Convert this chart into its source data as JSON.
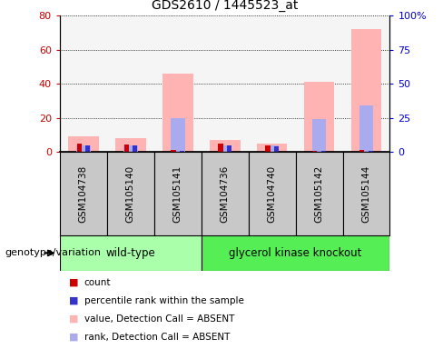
{
  "title": "GDS2610 / 1445523_at",
  "samples": [
    "GSM104738",
    "GSM105140",
    "GSM105141",
    "GSM104736",
    "GSM104740",
    "GSM105142",
    "GSM105144"
  ],
  "pink_bars": [
    9.0,
    8.0,
    46.0,
    7.0,
    5.0,
    41.0,
    72.0
  ],
  "red_bars": [
    5.0,
    4.5,
    1.0,
    5.0,
    3.5,
    0.5,
    1.0
  ],
  "blue_bars": [
    4.0,
    4.0,
    20.0,
    4.0,
    3.5,
    19.5,
    27.0
  ],
  "lightblue_bars": [
    3.5,
    3.5,
    0.8,
    3.5,
    3.0,
    0.4,
    0.8
  ],
  "left_ylim": [
    0,
    80
  ],
  "left_yticks": [
    0,
    20,
    40,
    60,
    80
  ],
  "right_yticks": [
    0,
    25,
    50,
    75,
    100
  ],
  "right_yticklabels": [
    "0",
    "25",
    "50",
    "75",
    "100%"
  ],
  "left_ylabel_color": "#cc0000",
  "right_ylabel_color": "#0000cc",
  "wt_color": "#aaffaa",
  "gk_color": "#55ee55",
  "pink_color": "#ffb3b3",
  "lightblue_color": "#aaaaee",
  "red_color": "#cc0000",
  "blue_color": "#3333cc",
  "sample_box_color": "#c8c8c8",
  "legend_items": [
    {
      "label": "count",
      "color": "#cc0000"
    },
    {
      "label": "percentile rank within the sample",
      "color": "#3333cc"
    },
    {
      "label": "value, Detection Call = ABSENT",
      "color": "#ffb3b3"
    },
    {
      "label": "rank, Detection Call = ABSENT",
      "color": "#aaaaee"
    }
  ],
  "wt_samples": [
    0,
    1,
    2
  ],
  "gk_samples": [
    3,
    4,
    5,
    6
  ]
}
